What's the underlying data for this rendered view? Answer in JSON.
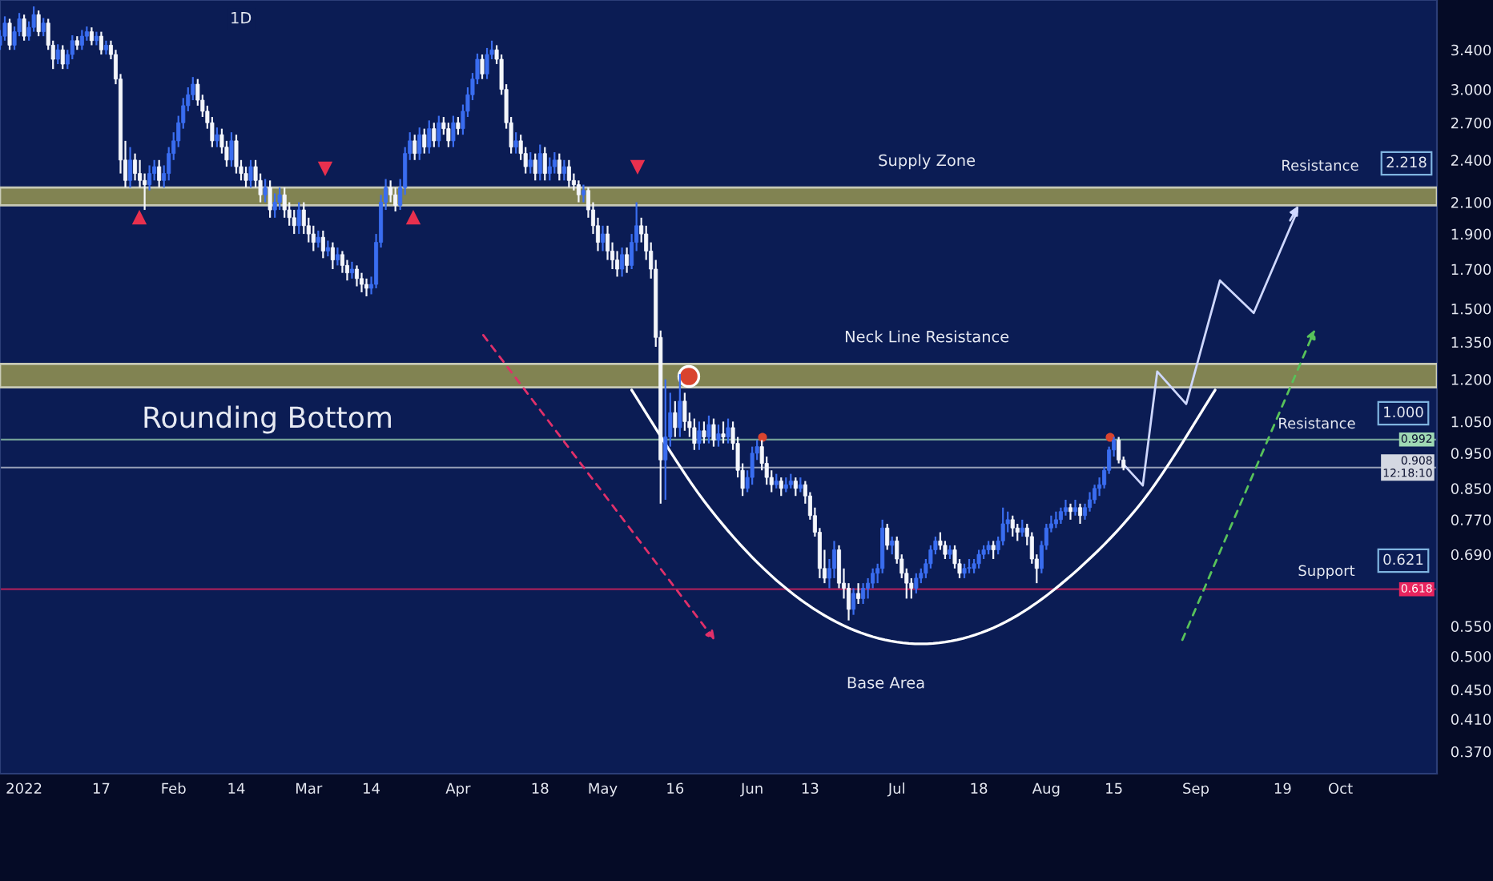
{
  "chart_data": {
    "type": "candlestick",
    "title": "1D",
    "x": [
      "2021-12-27",
      "2021-12-28",
      "2021-12-29",
      "2021-12-30",
      "2021-12-31",
      "2022-01-01",
      "2022-01-02",
      "2022-01-03",
      "2022-01-04",
      "2022-01-05",
      "2022-01-06",
      "2022-01-07",
      "2022-01-08",
      "2022-01-09",
      "2022-01-10",
      "2022-01-11",
      "2022-01-12",
      "2022-01-13",
      "2022-01-14",
      "2022-01-15",
      "2022-01-16",
      "2022-01-17",
      "2022-01-18",
      "2022-01-19",
      "2022-01-20",
      "2022-01-21",
      "2022-01-22",
      "2022-01-23",
      "2022-01-24",
      "2022-01-25",
      "2022-01-26",
      "2022-01-27",
      "2022-01-28",
      "2022-01-29",
      "2022-01-30",
      "2022-01-31",
      "2022-02-01",
      "2022-02-02",
      "2022-02-03",
      "2022-02-04",
      "2022-02-05",
      "2022-02-06",
      "2022-02-07",
      "2022-02-08",
      "2022-02-09",
      "2022-02-10",
      "2022-02-11",
      "2022-02-12",
      "2022-02-13",
      "2022-02-14",
      "2022-02-15",
      "2022-02-16",
      "2022-02-17",
      "2022-02-18",
      "2022-02-19",
      "2022-02-20",
      "2022-02-21",
      "2022-02-22",
      "2022-02-23",
      "2022-02-24",
      "2022-02-25",
      "2022-02-26",
      "2022-02-27",
      "2022-02-28",
      "2022-03-01",
      "2022-03-02",
      "2022-03-03",
      "2022-03-04",
      "2022-03-05",
      "2022-03-06",
      "2022-03-07",
      "2022-03-08",
      "2022-03-09",
      "2022-03-10",
      "2022-03-11",
      "2022-03-12",
      "2022-03-13",
      "2022-03-14",
      "2022-03-15",
      "2022-03-16",
      "2022-03-17",
      "2022-03-18",
      "2022-03-19",
      "2022-03-20",
      "2022-03-21",
      "2022-03-22",
      "2022-03-23",
      "2022-03-24",
      "2022-03-25",
      "2022-03-26",
      "2022-03-27",
      "2022-03-28",
      "2022-03-29",
      "2022-03-30",
      "2022-03-31",
      "2022-04-01",
      "2022-04-02",
      "2022-04-03",
      "2022-04-04",
      "2022-04-05",
      "2022-04-06",
      "2022-04-07",
      "2022-04-08",
      "2022-04-09",
      "2022-04-10",
      "2022-04-11",
      "2022-04-12",
      "2022-04-13",
      "2022-04-14",
      "2022-04-15",
      "2022-04-16",
      "2022-04-17",
      "2022-04-18",
      "2022-04-19",
      "2022-04-20",
      "2022-04-21",
      "2022-04-22",
      "2022-04-23",
      "2022-04-24",
      "2022-04-25",
      "2022-04-26",
      "2022-04-27",
      "2022-04-28",
      "2022-04-29",
      "2022-04-30",
      "2022-05-01",
      "2022-05-02",
      "2022-05-03",
      "2022-05-04",
      "2022-05-05",
      "2022-05-06",
      "2022-05-07",
      "2022-05-08",
      "2022-05-09",
      "2022-05-10",
      "2022-05-11",
      "2022-05-12",
      "2022-05-13",
      "2022-05-14",
      "2022-05-15",
      "2022-05-16",
      "2022-05-17",
      "2022-05-18",
      "2022-05-19",
      "2022-05-20",
      "2022-05-21",
      "2022-05-22",
      "2022-05-23",
      "2022-05-24",
      "2022-05-25",
      "2022-05-26",
      "2022-05-27",
      "2022-05-28",
      "2022-05-29",
      "2022-05-30",
      "2022-05-31",
      "2022-06-01",
      "2022-06-02",
      "2022-06-03",
      "2022-06-04",
      "2022-06-05",
      "2022-06-06",
      "2022-06-07",
      "2022-06-08",
      "2022-06-09",
      "2022-06-10",
      "2022-06-11",
      "2022-06-12",
      "2022-06-13",
      "2022-06-14",
      "2022-06-15",
      "2022-06-16",
      "2022-06-17",
      "2022-06-18",
      "2022-06-19",
      "2022-06-20",
      "2022-06-21",
      "2022-06-22",
      "2022-06-23",
      "2022-06-24",
      "2022-06-25",
      "2022-06-26",
      "2022-06-27",
      "2022-06-28",
      "2022-06-29",
      "2022-06-30",
      "2022-07-01",
      "2022-07-02",
      "2022-07-03",
      "2022-07-04",
      "2022-07-05",
      "2022-07-06",
      "2022-07-07",
      "2022-07-08",
      "2022-07-09",
      "2022-07-10",
      "2022-07-11",
      "2022-07-12",
      "2022-07-13",
      "2022-07-14",
      "2022-07-15",
      "2022-07-16",
      "2022-07-17",
      "2022-07-18",
      "2022-07-19",
      "2022-07-20",
      "2022-07-21",
      "2022-07-22",
      "2022-07-23",
      "2022-07-24",
      "2022-07-25",
      "2022-07-26",
      "2022-07-27",
      "2022-07-28",
      "2022-07-29",
      "2022-07-30",
      "2022-07-31",
      "2022-08-01",
      "2022-08-02",
      "2022-08-03",
      "2022-08-04",
      "2022-08-05",
      "2022-08-06",
      "2022-08-07",
      "2022-08-08",
      "2022-08-09",
      "2022-08-10",
      "2022-08-11",
      "2022-08-12",
      "2022-08-13",
      "2022-08-14",
      "2022-08-15",
      "2022-08-16",
      "2022-08-17"
    ],
    "ohlc": [
      [
        3.45,
        3.62,
        3.4,
        3.55
      ],
      [
        3.55,
        3.78,
        3.5,
        3.7
      ],
      [
        3.7,
        3.75,
        3.4,
        3.45
      ],
      [
        3.45,
        3.66,
        3.4,
        3.6
      ],
      [
        3.6,
        3.82,
        3.55,
        3.75
      ],
      [
        3.75,
        3.8,
        3.5,
        3.55
      ],
      [
        3.55,
        3.72,
        3.5,
        3.65
      ],
      [
        3.65,
        3.9,
        3.6,
        3.8
      ],
      [
        3.8,
        3.85,
        3.55,
        3.6
      ],
      [
        3.6,
        3.76,
        3.55,
        3.7
      ],
      [
        3.7,
        3.75,
        3.4,
        3.45
      ],
      [
        3.45,
        3.5,
        3.2,
        3.3
      ],
      [
        3.3,
        3.46,
        3.25,
        3.4
      ],
      [
        3.4,
        3.45,
        3.2,
        3.25
      ],
      [
        3.25,
        3.4,
        3.2,
        3.35
      ],
      [
        3.35,
        3.56,
        3.3,
        3.5
      ],
      [
        3.5,
        3.55,
        3.4,
        3.45
      ],
      [
        3.45,
        3.62,
        3.4,
        3.55
      ],
      [
        3.55,
        3.66,
        3.5,
        3.6
      ],
      [
        3.6,
        3.65,
        3.45,
        3.5
      ],
      [
        3.5,
        3.6,
        3.45,
        3.55
      ],
      [
        3.55,
        3.6,
        3.35,
        3.4
      ],
      [
        3.4,
        3.5,
        3.35,
        3.45
      ],
      [
        3.45,
        3.5,
        3.3,
        3.35
      ],
      [
        3.35,
        3.4,
        3.05,
        3.1
      ],
      [
        3.1,
        3.15,
        2.3,
        2.4
      ],
      [
        2.4,
        2.55,
        2.2,
        2.25
      ],
      [
        2.25,
        2.5,
        2.2,
        2.4
      ],
      [
        2.4,
        2.45,
        2.25,
        2.3
      ],
      [
        2.3,
        2.4,
        2.2,
        2.25
      ],
      [
        2.25,
        2.3,
        2.05,
        2.22
      ],
      [
        2.22,
        2.36,
        2.18,
        2.3
      ],
      [
        2.3,
        2.4,
        2.25,
        2.35
      ],
      [
        2.35,
        2.4,
        2.2,
        2.25
      ],
      [
        2.25,
        2.36,
        2.2,
        2.3
      ],
      [
        2.3,
        2.5,
        2.25,
        2.45
      ],
      [
        2.45,
        2.62,
        2.4,
        2.55
      ],
      [
        2.55,
        2.76,
        2.5,
        2.7
      ],
      [
        2.7,
        2.92,
        2.65,
        2.85
      ],
      [
        2.85,
        3.02,
        2.8,
        2.95
      ],
      [
        2.95,
        3.12,
        2.9,
        3.05
      ],
      [
        3.05,
        3.1,
        2.85,
        2.9
      ],
      [
        2.9,
        2.95,
        2.75,
        2.8
      ],
      [
        2.8,
        2.85,
        2.65,
        2.7
      ],
      [
        2.7,
        2.75,
        2.5,
        2.55
      ],
      [
        2.55,
        2.66,
        2.5,
        2.6
      ],
      [
        2.6,
        2.65,
        2.45,
        2.5
      ],
      [
        2.5,
        2.55,
        2.35,
        2.4
      ],
      [
        2.4,
        2.62,
        2.35,
        2.55
      ],
      [
        2.55,
        2.6,
        2.3,
        2.35
      ],
      [
        2.35,
        2.4,
        2.25,
        2.3
      ],
      [
        2.3,
        2.35,
        2.2,
        2.25
      ],
      [
        2.25,
        2.4,
        2.2,
        2.35
      ],
      [
        2.35,
        2.4,
        2.2,
        2.25
      ],
      [
        2.25,
        2.3,
        2.1,
        2.15
      ],
      [
        2.15,
        2.26,
        2.1,
        2.2
      ],
      [
        2.2,
        2.25,
        2.0,
        2.05
      ],
      [
        2.05,
        2.16,
        2.0,
        2.1
      ],
      [
        2.1,
        2.2,
        2.05,
        2.15
      ],
      [
        2.15,
        2.2,
        2.0,
        2.05
      ],
      [
        2.05,
        2.1,
        1.95,
        2.0
      ],
      [
        2.0,
        2.05,
        1.9,
        1.95
      ],
      [
        1.95,
        2.1,
        1.9,
        2.05
      ],
      [
        2.05,
        2.1,
        1.9,
        1.95
      ],
      [
        1.95,
        2.0,
        1.85,
        1.9
      ],
      [
        1.9,
        1.95,
        1.8,
        1.85
      ],
      [
        1.85,
        1.92,
        1.82,
        1.88
      ],
      [
        1.88,
        1.92,
        1.76,
        1.8
      ],
      [
        1.8,
        1.86,
        1.77,
        1.82
      ],
      [
        1.82,
        1.85,
        1.7,
        1.75
      ],
      [
        1.75,
        1.82,
        1.72,
        1.78
      ],
      [
        1.78,
        1.8,
        1.68,
        1.72
      ],
      [
        1.72,
        1.75,
        1.64,
        1.68
      ],
      [
        1.68,
        1.74,
        1.65,
        1.7
      ],
      [
        1.7,
        1.72,
        1.61,
        1.65
      ],
      [
        1.65,
        1.68,
        1.58,
        1.62
      ],
      [
        1.62,
        1.65,
        1.56,
        1.6
      ],
      [
        1.6,
        1.66,
        1.57,
        1.62
      ],
      [
        1.62,
        1.9,
        1.6,
        1.85
      ],
      [
        1.85,
        2.15,
        1.82,
        2.1
      ],
      [
        2.1,
        2.26,
        2.05,
        2.2
      ],
      [
        2.2,
        2.25,
        2.1,
        2.15
      ],
      [
        2.15,
        2.2,
        2.04,
        2.08
      ],
      [
        2.08,
        2.26,
        2.05,
        2.2
      ],
      [
        2.2,
        2.5,
        2.15,
        2.45
      ],
      [
        2.45,
        2.62,
        2.4,
        2.55
      ],
      [
        2.55,
        2.6,
        2.4,
        2.45
      ],
      [
        2.45,
        2.66,
        2.4,
        2.6
      ],
      [
        2.6,
        2.65,
        2.45,
        2.5
      ],
      [
        2.5,
        2.72,
        2.45,
        2.65
      ],
      [
        2.65,
        2.7,
        2.5,
        2.55
      ],
      [
        2.55,
        2.76,
        2.5,
        2.7
      ],
      [
        2.7,
        2.75,
        2.6,
        2.65
      ],
      [
        2.65,
        2.7,
        2.5,
        2.55
      ],
      [
        2.55,
        2.76,
        2.5,
        2.7
      ],
      [
        2.7,
        2.75,
        2.6,
        2.65
      ],
      [
        2.65,
        2.86,
        2.6,
        2.8
      ],
      [
        2.8,
        3.02,
        2.75,
        2.95
      ],
      [
        2.95,
        3.16,
        2.9,
        3.1
      ],
      [
        3.1,
        3.36,
        3.05,
        3.3
      ],
      [
        3.3,
        3.35,
        3.1,
        3.15
      ],
      [
        3.15,
        3.42,
        3.1,
        3.35
      ],
      [
        3.35,
        3.5,
        3.3,
        3.4
      ],
      [
        3.4,
        3.45,
        3.25,
        3.3
      ],
      [
        3.3,
        3.35,
        2.95,
        3.0
      ],
      [
        3.0,
        3.05,
        2.65,
        2.7
      ],
      [
        2.7,
        2.75,
        2.45,
        2.5
      ],
      [
        2.5,
        2.62,
        2.45,
        2.55
      ],
      [
        2.55,
        2.6,
        2.4,
        2.45
      ],
      [
        2.45,
        2.5,
        2.3,
        2.35
      ],
      [
        2.35,
        2.46,
        2.3,
        2.4
      ],
      [
        2.4,
        2.45,
        2.25,
        2.3
      ],
      [
        2.3,
        2.52,
        2.25,
        2.45
      ],
      [
        2.45,
        2.5,
        2.25,
        2.3
      ],
      [
        2.3,
        2.42,
        2.25,
        2.35
      ],
      [
        2.35,
        2.46,
        2.3,
        2.4
      ],
      [
        2.4,
        2.45,
        2.25,
        2.3
      ],
      [
        2.3,
        2.4,
        2.25,
        2.35
      ],
      [
        2.35,
        2.4,
        2.2,
        2.25
      ],
      [
        2.25,
        2.3,
        2.18,
        2.22
      ],
      [
        2.22,
        2.25,
        2.1,
        2.15
      ],
      [
        2.15,
        2.22,
        2.1,
        2.18
      ],
      [
        2.18,
        2.2,
        2.0,
        2.05
      ],
      [
        2.05,
        2.1,
        1.9,
        1.95
      ],
      [
        1.95,
        2.0,
        1.8,
        1.85
      ],
      [
        1.85,
        1.95,
        1.8,
        1.9
      ],
      [
        1.9,
        1.95,
        1.75,
        1.8
      ],
      [
        1.8,
        1.85,
        1.7,
        1.75
      ],
      [
        1.75,
        1.8,
        1.66,
        1.7
      ],
      [
        1.7,
        1.82,
        1.66,
        1.78
      ],
      [
        1.78,
        1.82,
        1.68,
        1.72
      ],
      [
        1.72,
        1.9,
        1.7,
        1.85
      ],
      [
        1.85,
        2.1,
        1.8,
        1.95
      ],
      [
        1.95,
        2.0,
        1.85,
        1.9
      ],
      [
        1.9,
        1.95,
        1.75,
        1.8
      ],
      [
        1.8,
        1.85,
        1.65,
        1.7
      ],
      [
        1.7,
        1.75,
        1.33,
        1.37
      ],
      [
        1.37,
        1.4,
        0.81,
        0.93
      ],
      [
        0.93,
        1.2,
        0.82,
        1.0
      ],
      [
        1.0,
        1.15,
        0.97,
        1.08
      ],
      [
        1.08,
        1.12,
        1.0,
        1.03
      ],
      [
        1.03,
        1.22,
        1.0,
        1.12
      ],
      [
        1.12,
        1.15,
        1.02,
        1.05
      ],
      [
        1.05,
        1.08,
        1.0,
        1.03
      ],
      [
        1.03,
        1.06,
        0.96,
        0.98
      ],
      [
        0.98,
        1.05,
        0.96,
        1.02
      ],
      [
        1.02,
        1.05,
        0.98,
        1.0
      ],
      [
        1.0,
        1.07,
        0.98,
        1.04
      ],
      [
        1.04,
        1.06,
        0.97,
        0.99
      ],
      [
        0.99,
        1.04,
        0.97,
        1.01
      ],
      [
        1.01,
        1.05,
        0.98,
        1.0
      ],
      [
        1.0,
        1.06,
        0.98,
        1.03
      ],
      [
        1.03,
        1.05,
        0.96,
        0.98
      ],
      [
        0.98,
        1.0,
        0.88,
        0.9
      ],
      [
        0.9,
        0.92,
        0.83,
        0.85
      ],
      [
        0.85,
        0.9,
        0.84,
        0.88
      ],
      [
        0.88,
        0.97,
        0.86,
        0.95
      ],
      [
        0.95,
        0.99,
        0.93,
        0.97
      ],
      [
        0.97,
        0.99,
        0.9,
        0.92
      ],
      [
        0.92,
        0.94,
        0.86,
        0.88
      ],
      [
        0.88,
        0.9,
        0.84,
        0.86
      ],
      [
        0.86,
        0.89,
        0.85,
        0.87
      ],
      [
        0.87,
        0.88,
        0.83,
        0.85
      ],
      [
        0.85,
        0.88,
        0.84,
        0.86
      ],
      [
        0.86,
        0.89,
        0.85,
        0.87
      ],
      [
        0.87,
        0.88,
        0.83,
        0.85
      ],
      [
        0.85,
        0.88,
        0.84,
        0.86
      ],
      [
        0.86,
        0.87,
        0.81,
        0.83
      ],
      [
        0.83,
        0.84,
        0.77,
        0.78
      ],
      [
        0.78,
        0.8,
        0.73,
        0.74
      ],
      [
        0.74,
        0.75,
        0.64,
        0.66
      ],
      [
        0.66,
        0.7,
        0.63,
        0.64
      ],
      [
        0.64,
        0.68,
        0.62,
        0.66
      ],
      [
        0.66,
        0.72,
        0.64,
        0.7
      ],
      [
        0.7,
        0.71,
        0.62,
        0.63
      ],
      [
        0.63,
        0.66,
        0.6,
        0.62
      ],
      [
        0.62,
        0.63,
        0.56,
        0.58
      ],
      [
        0.58,
        0.62,
        0.57,
        0.61
      ],
      [
        0.61,
        0.63,
        0.59,
        0.6
      ],
      [
        0.6,
        0.63,
        0.59,
        0.62
      ],
      [
        0.62,
        0.64,
        0.6,
        0.63
      ],
      [
        0.63,
        0.66,
        0.62,
        0.65
      ],
      [
        0.65,
        0.67,
        0.63,
        0.66
      ],
      [
        0.66,
        0.77,
        0.65,
        0.75
      ],
      [
        0.75,
        0.76,
        0.7,
        0.71
      ],
      [
        0.71,
        0.73,
        0.69,
        0.72
      ],
      [
        0.72,
        0.73,
        0.67,
        0.68
      ],
      [
        0.68,
        0.69,
        0.64,
        0.65
      ],
      [
        0.65,
        0.66,
        0.6,
        0.63
      ],
      [
        0.63,
        0.64,
        0.6,
        0.62
      ],
      [
        0.62,
        0.65,
        0.61,
        0.64
      ],
      [
        0.64,
        0.66,
        0.63,
        0.65
      ],
      [
        0.65,
        0.68,
        0.64,
        0.67
      ],
      [
        0.67,
        0.71,
        0.66,
        0.7
      ],
      [
        0.7,
        0.73,
        0.69,
        0.72
      ],
      [
        0.72,
        0.74,
        0.7,
        0.71
      ],
      [
        0.71,
        0.72,
        0.68,
        0.69
      ],
      [
        0.69,
        0.71,
        0.68,
        0.7
      ],
      [
        0.7,
        0.71,
        0.66,
        0.67
      ],
      [
        0.67,
        0.68,
        0.64,
        0.65
      ],
      [
        0.65,
        0.67,
        0.64,
        0.66
      ],
      [
        0.66,
        0.68,
        0.65,
        0.66
      ],
      [
        0.66,
        0.68,
        0.65,
        0.67
      ],
      [
        0.67,
        0.7,
        0.66,
        0.69
      ],
      [
        0.69,
        0.71,
        0.68,
        0.7
      ],
      [
        0.7,
        0.72,
        0.69,
        0.71
      ],
      [
        0.71,
        0.72,
        0.68,
        0.7
      ],
      [
        0.7,
        0.73,
        0.69,
        0.72
      ],
      [
        0.72,
        0.8,
        0.71,
        0.76
      ],
      [
        0.76,
        0.79,
        0.74,
        0.77
      ],
      [
        0.77,
        0.78,
        0.73,
        0.75
      ],
      [
        0.75,
        0.76,
        0.72,
        0.74
      ],
      [
        0.74,
        0.77,
        0.73,
        0.75
      ],
      [
        0.75,
        0.76,
        0.71,
        0.73
      ],
      [
        0.73,
        0.74,
        0.67,
        0.68
      ],
      [
        0.68,
        0.69,
        0.63,
        0.66
      ],
      [
        0.66,
        0.72,
        0.65,
        0.71
      ],
      [
        0.71,
        0.76,
        0.7,
        0.75
      ],
      [
        0.75,
        0.78,
        0.74,
        0.76
      ],
      [
        0.76,
        0.79,
        0.75,
        0.77
      ],
      [
        0.77,
        0.8,
        0.76,
        0.79
      ],
      [
        0.79,
        0.82,
        0.78,
        0.8
      ],
      [
        0.8,
        0.81,
        0.77,
        0.79
      ],
      [
        0.79,
        0.82,
        0.78,
        0.8
      ],
      [
        0.8,
        0.81,
        0.76,
        0.78
      ],
      [
        0.78,
        0.81,
        0.77,
        0.8
      ],
      [
        0.8,
        0.84,
        0.79,
        0.82
      ],
      [
        0.82,
        0.86,
        0.81,
        0.85
      ],
      [
        0.85,
        0.88,
        0.83,
        0.86
      ],
      [
        0.86,
        0.91,
        0.85,
        0.9
      ],
      [
        0.9,
        0.97,
        0.89,
        0.96
      ],
      [
        0.96,
        1.0,
        0.94,
        0.99
      ],
      [
        0.99,
        1.0,
        0.92,
        0.93
      ],
      [
        0.93,
        0.94,
        0.9,
        0.908
      ]
    ],
    "xlim": [
      "2021-12-27",
      "2022-10-21"
    ],
    "xticks": [
      {
        "value": "2022-01-01",
        "label": "2022"
      },
      {
        "value": "2022-01-17",
        "label": "17"
      },
      {
        "value": "2022-02-01",
        "label": "Feb"
      },
      {
        "value": "2022-02-14",
        "label": "14"
      },
      {
        "value": "2022-03-01",
        "label": "Mar"
      },
      {
        "value": "2022-03-14",
        "label": "14"
      },
      {
        "value": "2022-04-01",
        "label": "Apr"
      },
      {
        "value": "2022-04-18",
        "label": "18"
      },
      {
        "value": "2022-05-01",
        "label": "May"
      },
      {
        "value": "2022-05-16",
        "label": "16"
      },
      {
        "value": "2022-06-01",
        "label": "Jun"
      },
      {
        "value": "2022-06-13",
        "label": "13"
      },
      {
        "value": "2022-07-01",
        "label": "Jul"
      },
      {
        "value": "2022-07-18",
        "label": "18"
      },
      {
        "value": "2022-08-01",
        "label": "Aug"
      },
      {
        "value": "2022-08-15",
        "label": "15"
      },
      {
        "value": "2022-09-01",
        "label": "Sep"
      },
      {
        "value": "2022-09-19",
        "label": "19"
      },
      {
        "value": "2022-10-01",
        "label": "Oct"
      }
    ],
    "log": true,
    "ylim": [
      0.345,
      3.98
    ],
    "yticks": [
      {
        "value": 3.4,
        "label": "3.400"
      },
      {
        "value": 3.0,
        "label": "3.000"
      },
      {
        "value": 2.7,
        "label": "2.700"
      },
      {
        "value": 2.4,
        "label": "2.400"
      },
      {
        "value": 2.1,
        "label": "2.100"
      },
      {
        "value": 1.9,
        "label": "1.900"
      },
      {
        "value": 1.7,
        "label": "1.700"
      },
      {
        "value": 1.5,
        "label": "1.500"
      },
      {
        "value": 1.35,
        "label": "1.350"
      },
      {
        "value": 1.2,
        "label": "1.200"
      },
      {
        "value": 1.05,
        "label": "1.050"
      },
      {
        "value": 0.95,
        "label": "0.950"
      },
      {
        "value": 0.85,
        "label": "0.850"
      },
      {
        "value": 0.77,
        "label": "0.770"
      },
      {
        "value": 0.69,
        "label": "0.690"
      },
      {
        "value": 0.55,
        "label": "0.550"
      },
      {
        "value": 0.5,
        "label": "0.500"
      },
      {
        "value": 0.45,
        "label": "0.450"
      },
      {
        "value": 0.41,
        "label": "0.410"
      },
      {
        "value": 0.37,
        "label": "0.370"
      }
    ],
    "bands": [
      {
        "axis": "y",
        "from": 2.08,
        "to": 2.2,
        "label": "Supply Zone",
        "color": "#8e8f52"
      },
      {
        "axis": "y",
        "from": 1.17,
        "to": 1.26,
        "label": "Neck Line Resistance",
        "color": "#8e8f52"
      }
    ],
    "ref_lines": [
      {
        "axis": "y",
        "value": 0.992,
        "label": "0.992",
        "color": "#9fd9b4"
      },
      {
        "axis": "y",
        "value": 0.908,
        "label": "0.908\n12:18:10",
        "color": "#d4d8e2"
      },
      {
        "axis": "y",
        "value": 0.618,
        "label": "0.618",
        "color": "#e8245e"
      }
    ],
    "series": [
      {
        "type": "line",
        "color": "#ffffff",
        "x": [
          "2022-05-07",
          "2022-05-22",
          "2022-06-06",
          "2022-06-21",
          "2022-07-06",
          "2022-07-21",
          "2022-08-05",
          "2022-08-21",
          "2022-09-05"
        ],
        "values": [
          1.16,
          0.817,
          0.636,
          0.547,
          0.52,
          0.547,
          0.636,
          0.817,
          1.16
        ]
      },
      {
        "type": "line",
        "color": "#cfd8ff",
        "x": [
          "2022-08-17",
          "2022-08-21",
          "2022-08-24",
          "2022-08-30",
          "2022-09-06",
          "2022-09-13",
          "2022-09-22"
        ],
        "values": [
          0.917,
          0.858,
          1.23,
          1.11,
          1.64,
          1.48,
          2.04
        ]
      }
    ],
    "annotations": [
      "Rounding Bottom",
      "Base Area",
      "Resistance",
      "2.218",
      "Resistance",
      "1.000",
      "Support",
      "0.621"
    ],
    "grid": false,
    "legend": false
  }
}
